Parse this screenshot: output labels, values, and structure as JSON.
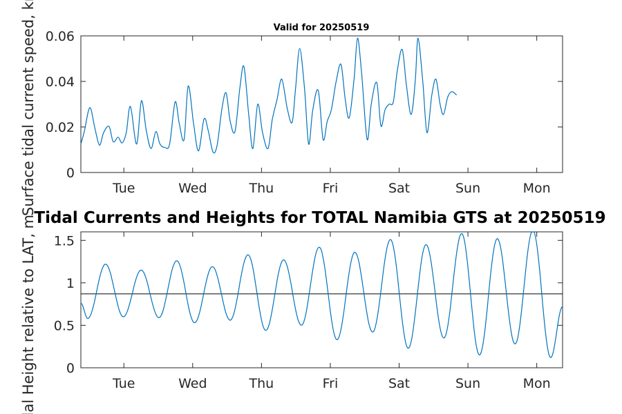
{
  "chart_data": [
    {
      "type": "line",
      "title": "Valid for 20250519",
      "ylabel": "Surface tidal current speed, kn",
      "ylim": [
        0,
        0.06
      ],
      "yticks": [
        0,
        0.02,
        0.04,
        0.06
      ],
      "ytick_labels": [
        "0",
        "0.02",
        "0.04",
        "0.06"
      ],
      "xlim": [
        0,
        7
      ],
      "xticks": [
        0.625,
        1.625,
        2.625,
        3.625,
        4.625,
        5.625,
        6.625
      ],
      "xtick_labels": [
        "Tue",
        "Wed",
        "Thu",
        "Fri",
        "Sat",
        "Sun",
        "Mon"
      ],
      "x_unit": "days",
      "series": [
        {
          "color": "#0072BD",
          "x": [
            0,
            0.05,
            0.13,
            0.2,
            0.27,
            0.33,
            0.41,
            0.47,
            0.54,
            0.6,
            0.66,
            0.72,
            0.81,
            0.88,
            0.95,
            1.02,
            1.09,
            1.15,
            1.22,
            1.29,
            1.37,
            1.43,
            1.5,
            1.56,
            1.64,
            1.71,
            1.79,
            1.85,
            1.92,
            1.98,
            2.05,
            2.11,
            2.17,
            2.24,
            2.31,
            2.37,
            2.44,
            2.5,
            2.57,
            2.64,
            2.72,
            2.78,
            2.85,
            2.92,
            3.0,
            3.07,
            3.12,
            3.18,
            3.25,
            3.31,
            3.37,
            3.45,
            3.52,
            3.58,
            3.64,
            3.71,
            3.78,
            3.84,
            3.9,
            3.97,
            4.02,
            4.08,
            4.16,
            4.22,
            4.3,
            4.36,
            4.42,
            4.48,
            4.54,
            4.6,
            4.67,
            4.73,
            4.8,
            4.86,
            4.9,
            4.97,
            5.03,
            5.1,
            5.16,
            5.22,
            5.27,
            5.33,
            5.39,
            5.46,
            5.52,
            5.59,
            5.66,
            5.71,
            5.78,
            5.84,
            5.9,
            5.96,
            6.02,
            6.09,
            6.16,
            6.22,
            6.28,
            6.34,
            6.41,
            6.47,
            6.53,
            6.59,
            6.66,
            6.73,
            6.79,
            6.85,
            6.92,
            6.96,
            7.0
          ],
          "y": [
            0.0125,
            0.018,
            0.0285,
            0.02,
            0.012,
            0.0175,
            0.0202,
            0.0135,
            0.0155,
            0.013,
            0.0175,
            0.029,
            0.0125,
            0.0315,
            0.0185,
            0.0105,
            0.018,
            0.0125,
            0.011,
            0.0125,
            0.031,
            0.0215,
            0.0145,
            0.038,
            0.021,
            0.0095,
            0.0235,
            0.0185,
            0.009,
            0.012,
            0.028,
            0.035,
            0.0225,
            0.018,
            0.037,
            0.0465,
            0.025,
            0.0105,
            0.03,
            0.0175,
            0.0105,
            0.023,
            0.032,
            0.041,
            0.028,
            0.022,
            0.037,
            0.0545,
            0.037,
            0.0125,
            0.0275,
            0.036,
            0.0145,
            0.0225,
            0.0275,
            0.04,
            0.0475,
            0.0325,
            0.024,
            0.041,
            0.059,
            0.0435,
            0.0145,
            0.03,
            0.0395,
            0.0205,
            0.0275,
            0.03,
            0.031,
            0.045,
            0.054,
            0.0385,
            0.0255,
            0.0405,
            0.059,
            0.0395,
            0.0175,
            0.034,
            0.041,
            0.03,
            0.0255,
            0.033,
            0.0355,
            0.034,
            null,
            null,
            null,
            null,
            null,
            null,
            null,
            null,
            null,
            null,
            null,
            null,
            null,
            null,
            null,
            null,
            null,
            null,
            null,
            null,
            null,
            null,
            null,
            null,
            null
          ]
        }
      ]
    },
    {
      "type": "line",
      "title": "Tidal Currents and Heights for TOTAL Namibia GTS at 20250519",
      "ylabel": "Tidal Height relative to LAT, m",
      "ylim": [
        0,
        1.6
      ],
      "yticks": [
        0,
        0.5,
        1,
        1.5
      ],
      "ytick_labels": [
        "0",
        "0.5",
        "1",
        "1.5"
      ],
      "xlim": [
        0,
        7
      ],
      "xticks": [
        0.625,
        1.625,
        2.625,
        3.625,
        4.625,
        5.625,
        6.625
      ],
      "xtick_labels": [
        "Tue",
        "Wed",
        "Thu",
        "Fri",
        "Sat",
        "Sun",
        "Mon"
      ],
      "x_unit": "days",
      "reference_line": {
        "y": 0.87,
        "color": "#000000"
      },
      "series": [
        {
          "color": "#0072BD",
          "minima": [
            0.58,
            0.6,
            0.59,
            0.53,
            0.56,
            0.44,
            0.5,
            0.33,
            0.42,
            0.23,
            0.35,
            0.15,
            0.28,
            0.12
          ],
          "maxima": [
            1.22,
            1.15,
            1.26,
            1.19,
            1.33,
            1.27,
            1.42,
            1.36,
            1.51,
            1.45,
            1.58,
            1.52,
            1.62
          ],
          "y_start": 0.76,
          "y_end": 0.72
        }
      ]
    }
  ]
}
